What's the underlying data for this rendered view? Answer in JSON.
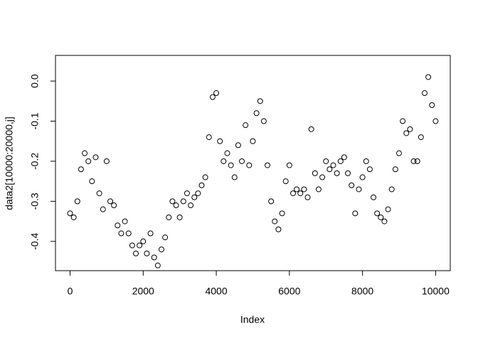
{
  "chart_data": {
    "type": "scatter",
    "x_label": "Index",
    "y_label": "data2[10000:20000,j]",
    "x": [
      0,
      100,
      200,
      300,
      400,
      500,
      600,
      700,
      800,
      900,
      1000,
      1100,
      1200,
      1300,
      1400,
      1500,
      1600,
      1700,
      1800,
      1900,
      2000,
      2100,
      2200,
      2300,
      2400,
      2500,
      2600,
      2700,
      2800,
      2900,
      3000,
      3100,
      3200,
      3300,
      3400,
      3500,
      3600,
      3700,
      3800,
      3900,
      4000,
      4100,
      4200,
      4300,
      4400,
      4500,
      4600,
      4700,
      4800,
      4900,
      5000,
      5100,
      5200,
      5300,
      5400,
      5500,
      5600,
      5700,
      5800,
      5900,
      6000,
      6100,
      6200,
      6300,
      6400,
      6500,
      6600,
      6700,
      6800,
      6900,
      7000,
      7100,
      7200,
      7300,
      7400,
      7500,
      7600,
      7700,
      7800,
      7900,
      8000,
      8100,
      8200,
      8300,
      8400,
      8500,
      8600,
      8700,
      8800,
      8900,
      9000,
      9100,
      9200,
      9300,
      9400,
      9500,
      9600,
      9700,
      9800,
      9900,
      10000
    ],
    "values": [
      -0.33,
      -0.34,
      -0.3,
      -0.22,
      -0.18,
      -0.2,
      -0.25,
      -0.19,
      -0.28,
      -0.32,
      -0.2,
      -0.3,
      -0.31,
      -0.36,
      -0.38,
      -0.35,
      -0.38,
      -0.41,
      -0.43,
      -0.41,
      -0.4,
      -0.43,
      -0.38,
      -0.44,
      -0.46,
      -0.42,
      -0.39,
      -0.34,
      -0.3,
      -0.31,
      -0.34,
      -0.3,
      -0.28,
      -0.31,
      -0.29,
      -0.28,
      -0.26,
      -0.24,
      -0.14,
      -0.04,
      -0.03,
      -0.15,
      -0.2,
      -0.18,
      -0.21,
      -0.24,
      -0.16,
      -0.2,
      -0.11,
      -0.21,
      -0.15,
      -0.08,
      -0.05,
      -0.1,
      -0.21,
      -0.3,
      -0.35,
      -0.37,
      -0.33,
      -0.25,
      -0.21,
      -0.28,
      -0.27,
      -0.28,
      -0.27,
      -0.29,
      -0.12,
      -0.23,
      -0.27,
      -0.24,
      -0.2,
      -0.22,
      -0.21,
      -0.23,
      -0.2,
      -0.19,
      -0.23,
      -0.26,
      -0.33,
      -0.27,
      -0.24,
      -0.2,
      -0.22,
      -0.29,
      -0.33,
      -0.34,
      -0.35,
      -0.32,
      -0.27,
      -0.22,
      -0.18,
      -0.1,
      -0.13,
      -0.12,
      -0.2,
      -0.2,
      -0.14,
      -0.03,
      0.01,
      -0.06,
      -0.1
    ],
    "color": "#000000",
    "xlim": [
      -399,
      10401
    ],
    "xticks": [
      0,
      2000,
      4000,
      6000,
      8000,
      10000
    ],
    "ylim": [
      -0.473,
      0.064
    ],
    "yticks": [
      -0.4,
      -0.3,
      -0.2,
      -0.1,
      {
        "value": 0,
        "label": "0.0"
      }
    ],
    "grid": false
  }
}
